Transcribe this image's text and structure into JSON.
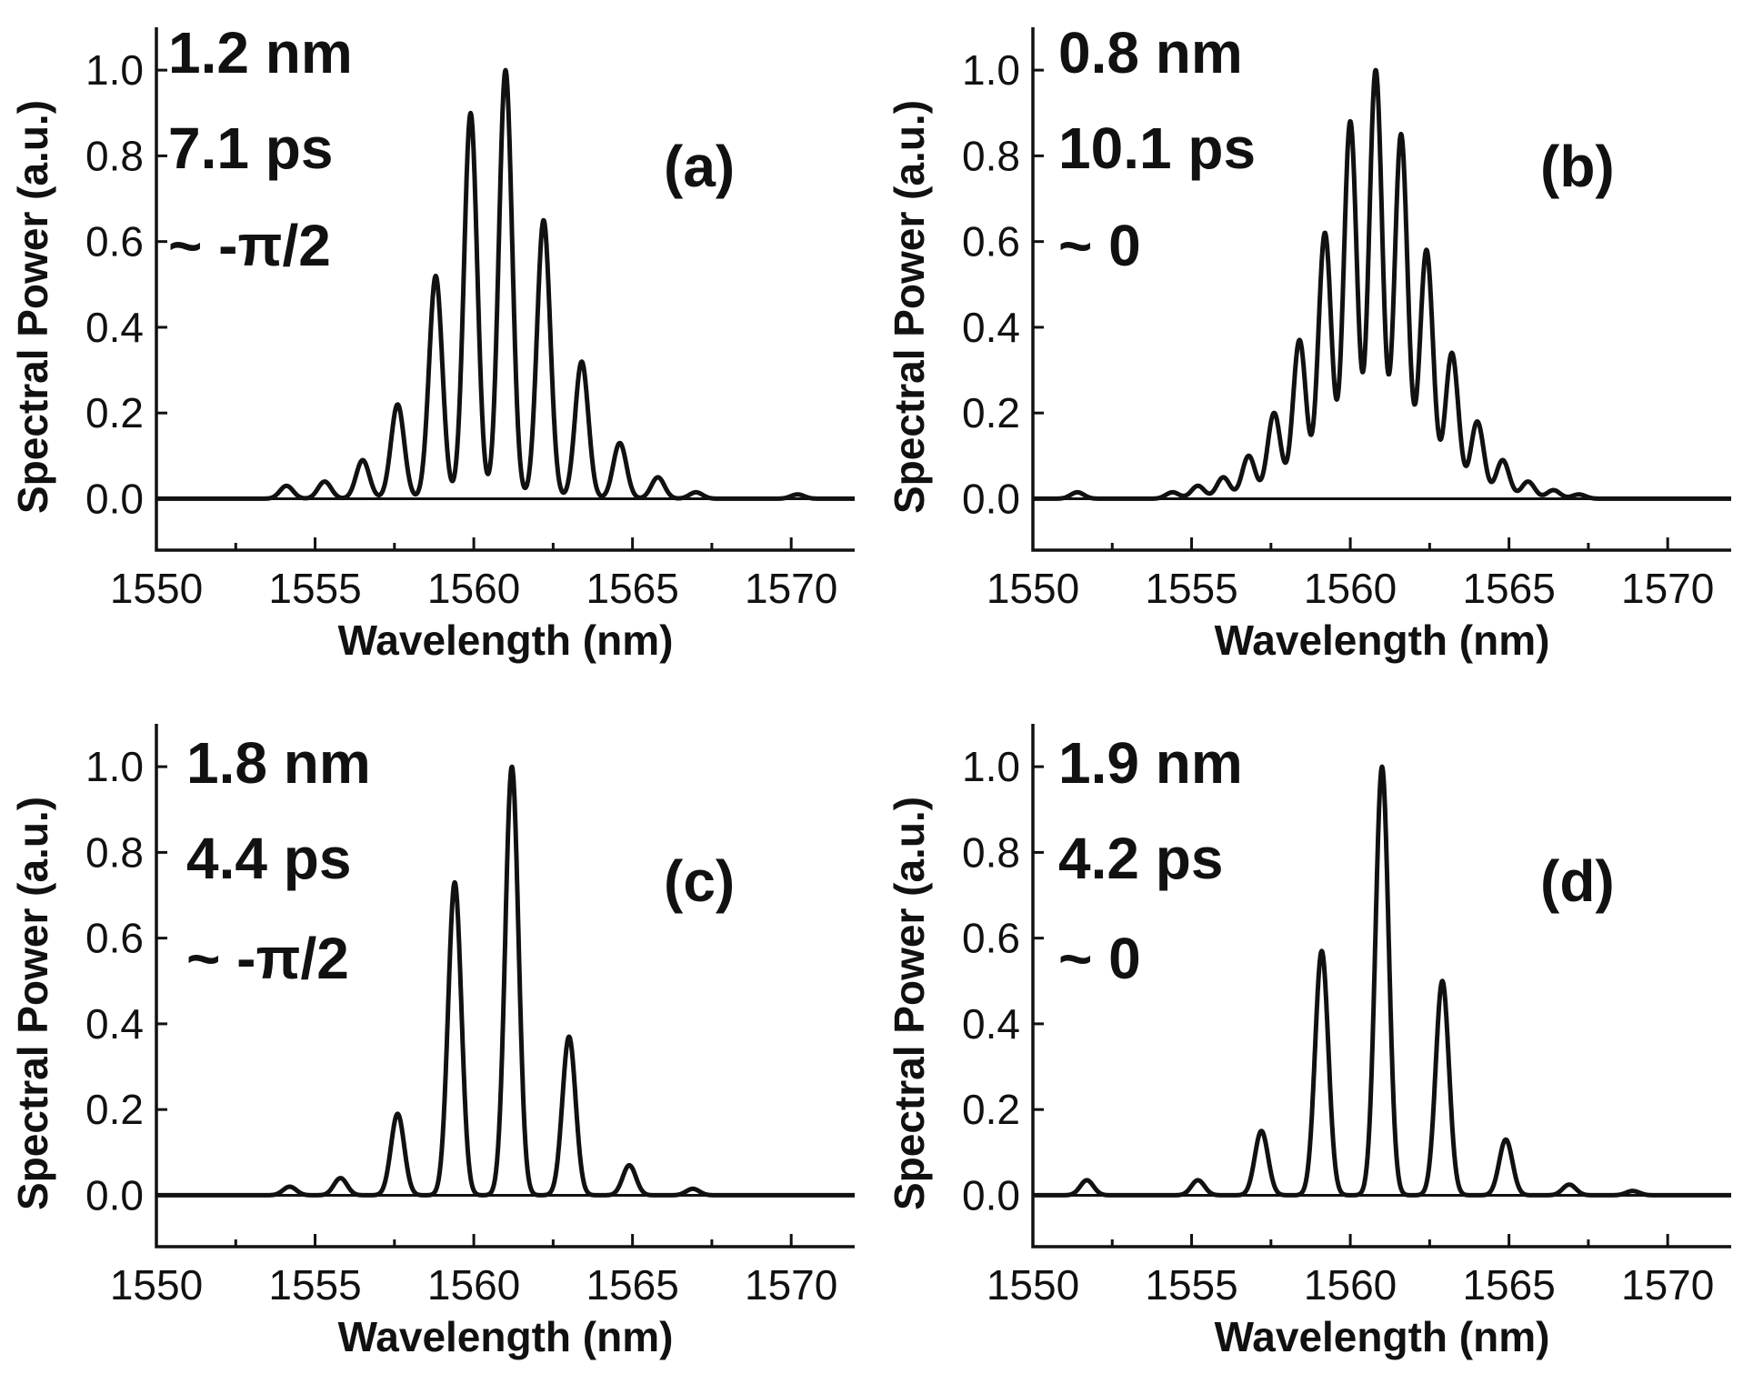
{
  "figure": {
    "xlabel": "Wavelength (nm)",
    "ylabel": "Spectral Power (a.u.)",
    "x_ticks": [
      "1550",
      "1555",
      "1560",
      "1565",
      "1570"
    ],
    "y_ticks": [
      "0.0",
      "0.2",
      "0.4",
      "0.6",
      "0.8",
      "1.0"
    ]
  },
  "chart_data": [
    {
      "type": "line",
      "panel_label": "(a)",
      "annotations": [
        "1.2 nm",
        "7.1 ps",
        "~ -π/2"
      ],
      "xlabel": "Wavelength (nm)",
      "ylabel": "Spectral Power (a.u.)",
      "xlim": [
        1550,
        1572
      ],
      "ylim": [
        -0.12,
        1.1
      ],
      "series": [
        {
          "name": "spectrum",
          "peaks": [
            [
              1554.1,
              0.03
            ],
            [
              1555.3,
              0.04
            ],
            [
              1556.5,
              0.09
            ],
            [
              1557.6,
              0.22
            ],
            [
              1558.8,
              0.52
            ],
            [
              1559.9,
              0.9
            ],
            [
              1561.0,
              1.0
            ],
            [
              1562.2,
              0.65
            ],
            [
              1563.4,
              0.32
            ],
            [
              1564.6,
              0.13
            ],
            [
              1565.8,
              0.05
            ],
            [
              1567.0,
              0.015
            ],
            [
              1570.2,
              0.01
            ]
          ]
        }
      ]
    },
    {
      "type": "line",
      "panel_label": "(b)",
      "annotations": [
        "0.8 nm",
        "10.1 ps",
        "~ 0"
      ],
      "xlabel": "Wavelength (nm)",
      "ylabel": "Spectral Power (a.u.)",
      "xlim": [
        1550,
        1572
      ],
      "ylim": [
        -0.12,
        1.1
      ],
      "series": [
        {
          "name": "spectrum",
          "peaks": [
            [
              1551.4,
              0.015
            ],
            [
              1554.4,
              0.015
            ],
            [
              1555.2,
              0.03
            ],
            [
              1556.0,
              0.05
            ],
            [
              1556.8,
              0.1
            ],
            [
              1557.6,
              0.2
            ],
            [
              1558.4,
              0.37
            ],
            [
              1559.2,
              0.62
            ],
            [
              1560.0,
              0.88
            ],
            [
              1560.8,
              1.0
            ],
            [
              1561.6,
              0.85
            ],
            [
              1562.4,
              0.58
            ],
            [
              1563.2,
              0.34
            ],
            [
              1564.0,
              0.18
            ],
            [
              1564.8,
              0.09
            ],
            [
              1565.6,
              0.04
            ],
            [
              1566.4,
              0.02
            ],
            [
              1567.2,
              0.01
            ]
          ]
        }
      ]
    },
    {
      "type": "line",
      "panel_label": "(c)",
      "annotations": [
        "1.8 nm",
        "4.4 ps",
        "~ -π/2"
      ],
      "xlabel": "Wavelength (nm)",
      "ylabel": "Spectral Power (a.u.)",
      "xlim": [
        1550,
        1572
      ],
      "ylim": [
        -0.12,
        1.1
      ],
      "series": [
        {
          "name": "spectrum",
          "peaks": [
            [
              1554.2,
              0.02
            ],
            [
              1555.8,
              0.04
            ],
            [
              1557.6,
              0.19
            ],
            [
              1559.4,
              0.73
            ],
            [
              1561.2,
              1.0
            ],
            [
              1563.0,
              0.37
            ],
            [
              1564.9,
              0.07
            ],
            [
              1566.9,
              0.015
            ]
          ]
        }
      ]
    },
    {
      "type": "line",
      "panel_label": "(d)",
      "annotations": [
        "1.9 nm",
        "4.2 ps",
        "~ 0"
      ],
      "xlabel": "Wavelength (nm)",
      "ylabel": "Spectral Power (a.u.)",
      "xlim": [
        1550,
        1572
      ],
      "ylim": [
        -0.12,
        1.1
      ],
      "series": [
        {
          "name": "spectrum",
          "peaks": [
            [
              1551.7,
              0.035
            ],
            [
              1555.2,
              0.035
            ],
            [
              1557.2,
              0.15
            ],
            [
              1559.1,
              0.57
            ],
            [
              1561.0,
              1.0
            ],
            [
              1562.9,
              0.5
            ],
            [
              1564.9,
              0.13
            ],
            [
              1566.9,
              0.025
            ],
            [
              1568.9,
              0.01
            ]
          ]
        }
      ]
    }
  ]
}
